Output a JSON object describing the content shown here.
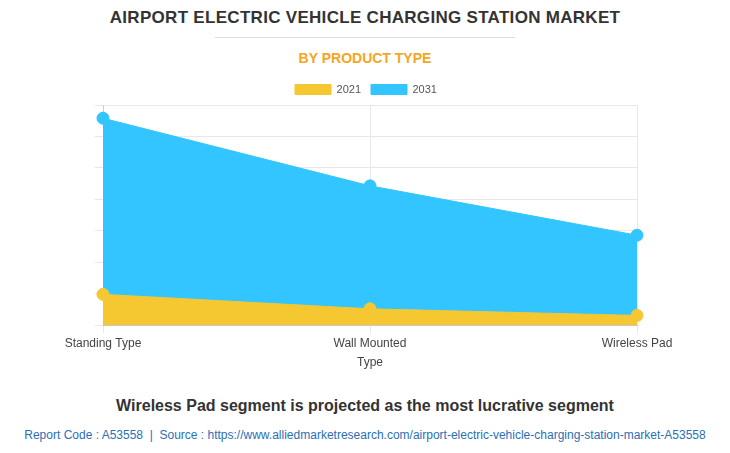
{
  "chart_data": {
    "type": "area",
    "title": "AIRPORT ELECTRIC VEHICLE CHARGING STATION MARKET",
    "subtitle": "BY PRODUCT TYPE",
    "x_label": "Type",
    "categories": [
      "Standing Type",
      "Wall Mounted",
      "Wireless Pad"
    ],
    "series": [
      {
        "name": "2021",
        "color": "#f5c731",
        "values": [
          0.98,
          0.52,
          0.31
        ]
      },
      {
        "name": "2031",
        "color": "#33c5ff",
        "values": [
          6.58,
          4.43,
          2.86
        ]
      }
    ],
    "ylim": [
      0,
      7
    ],
    "yticks": [
      0,
      1,
      2,
      3,
      4,
      5,
      6,
      7
    ],
    "grid": true,
    "tick_labels": "x",
    "marker": "circle",
    "legend": "top",
    "annotations": [
      "Wireless Pad segment is projected as the most lucrative segment"
    ],
    "source": "Report Code : A53558  |  Source : https://www.alliedmarketresearch.com/airport-electric-vehicle-charging-station-market-A53558"
  }
}
